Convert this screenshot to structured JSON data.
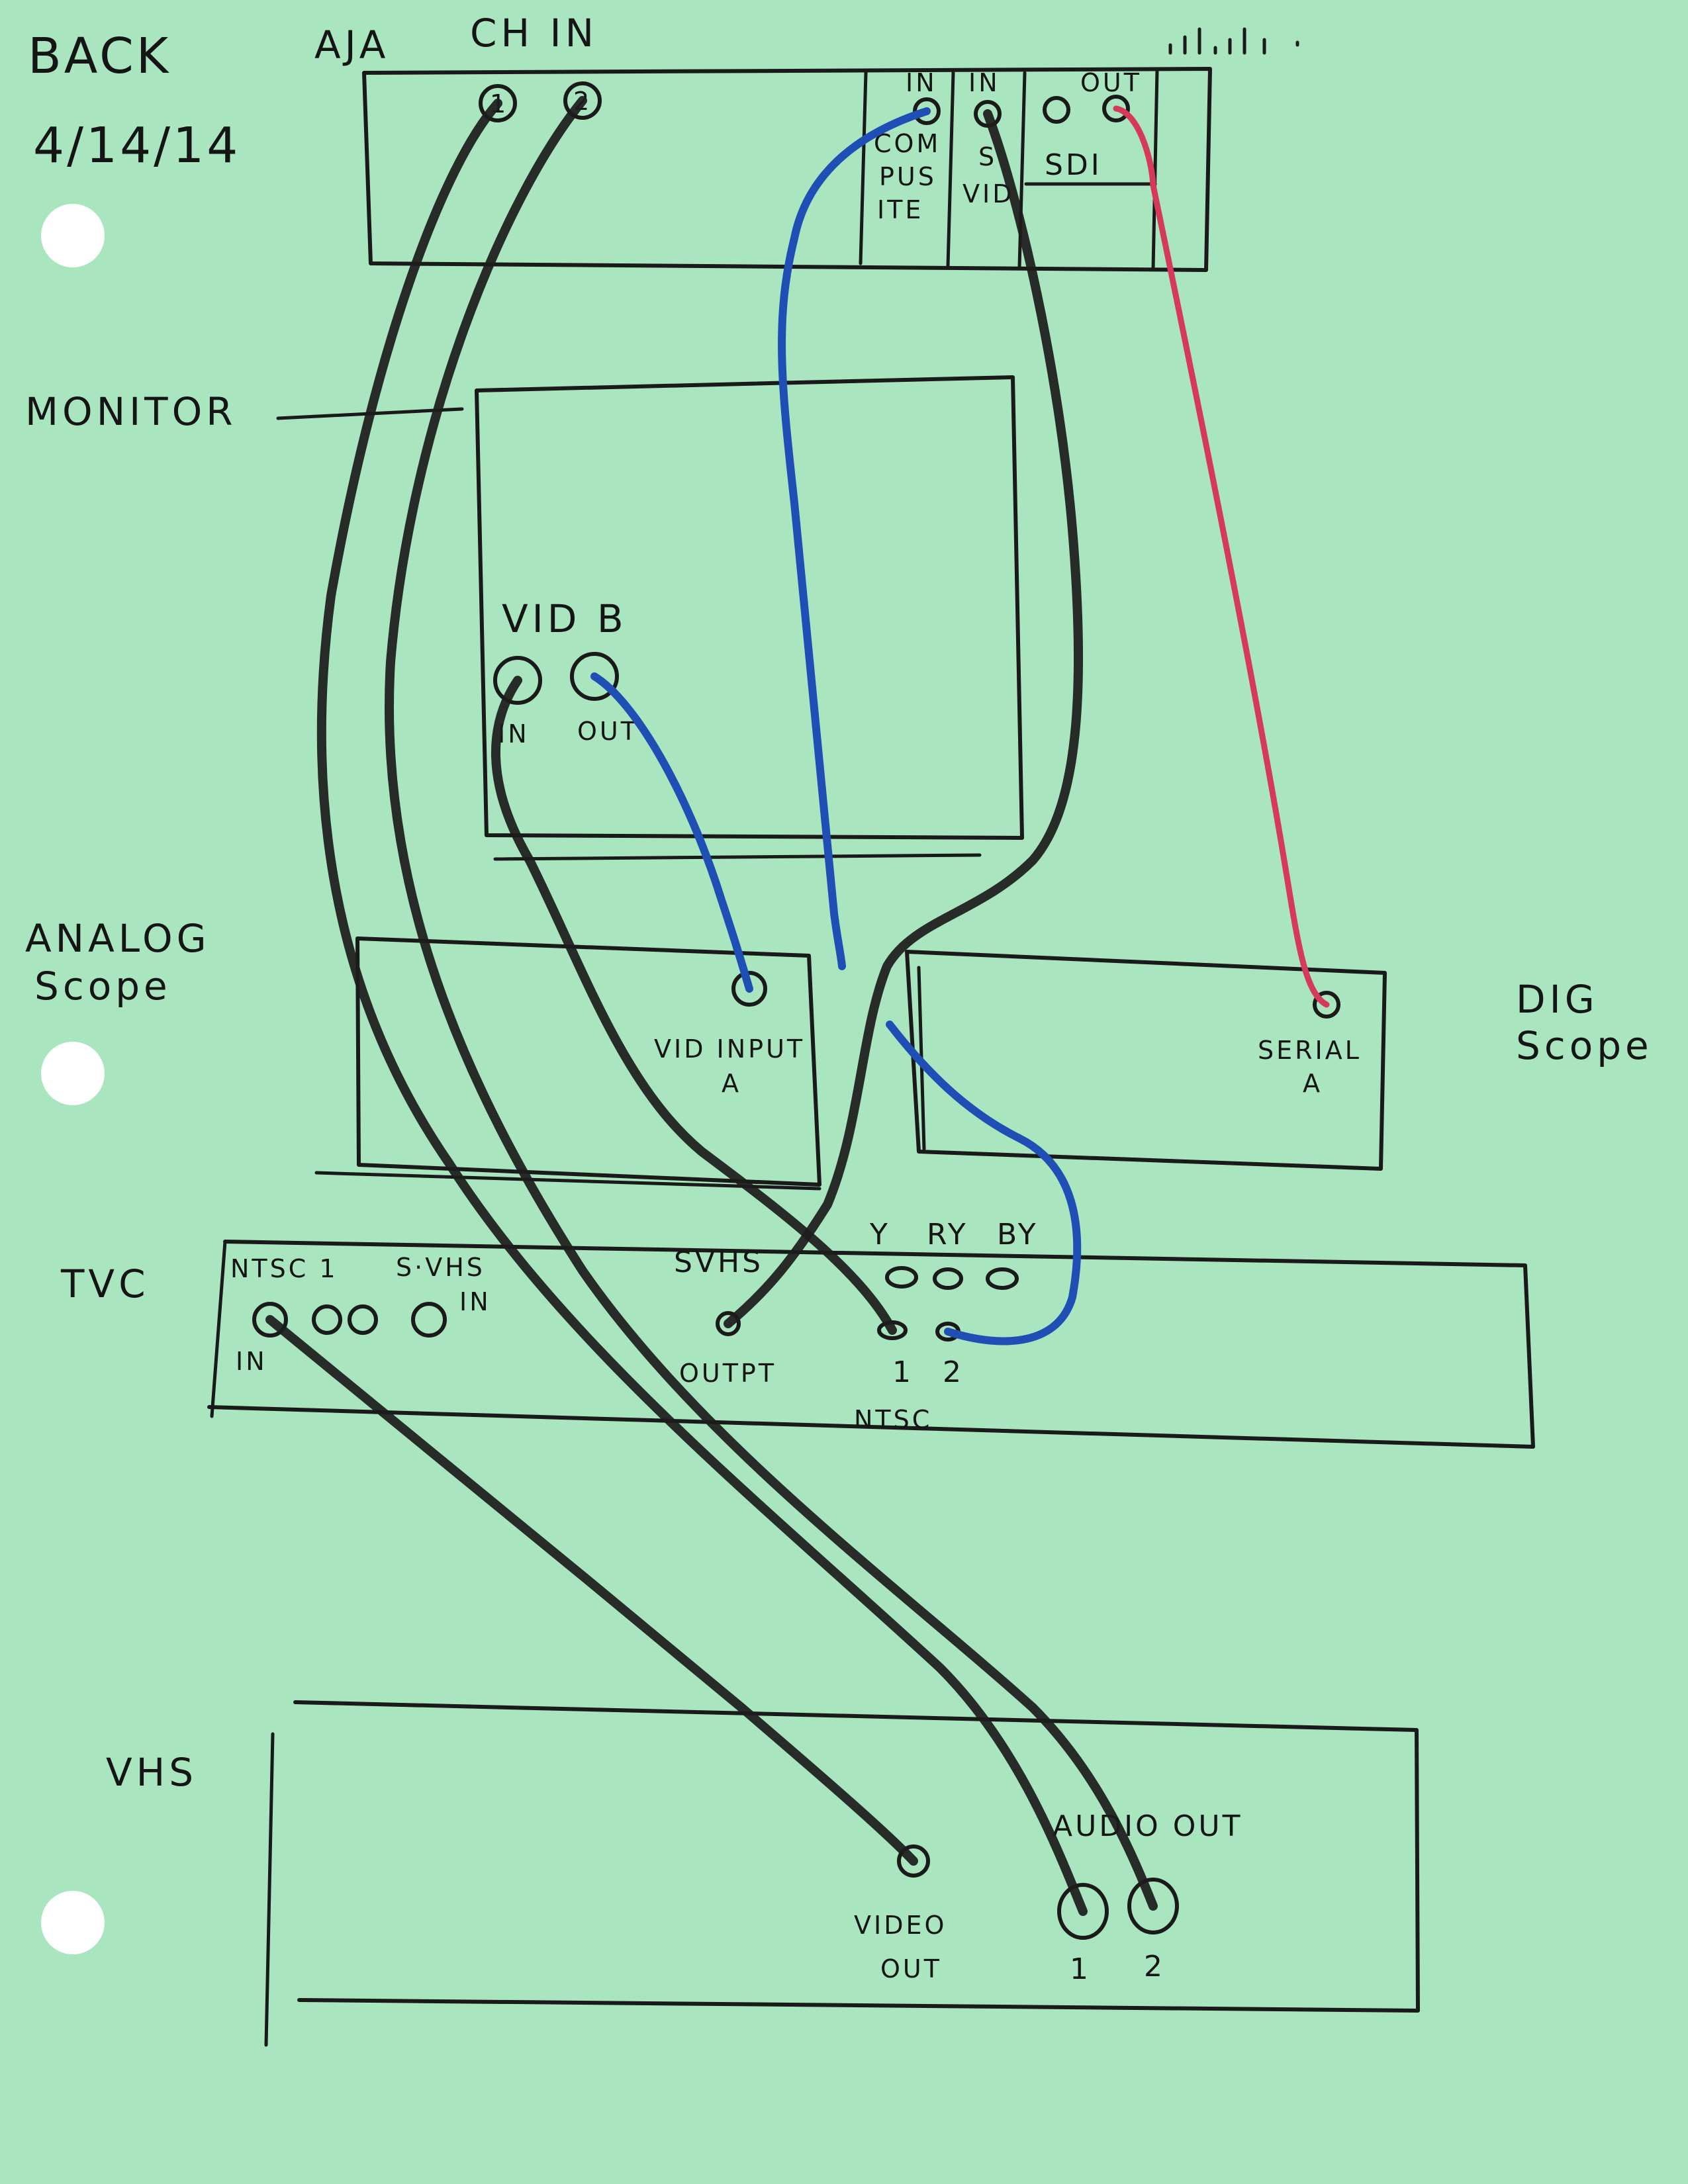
{
  "header": {
    "title": "BACK",
    "date": "4/14/14"
  },
  "aja": {
    "label": "AJA",
    "ch_in": "CH  IN",
    "port_1": "1",
    "port_2": "2",
    "composite_in": "IN",
    "composite_label_1": "COM",
    "composite_label_2": "PUS",
    "composite_label_3": "ITE",
    "svid_in": "IN",
    "svid_label_1": "S",
    "svid_label_2": "VID",
    "sdi_out": "OUT",
    "sdi_label": "SDI"
  },
  "monitor": {
    "label": "MONITOR",
    "vid_b": "VID B",
    "in": "IN",
    "out": "OUT"
  },
  "analog_scope": {
    "label_1": "ANALOG",
    "label_2": "Scope",
    "vid_input": "VID INPUT",
    "input_a": "A"
  },
  "dig_scope": {
    "label_1": "DIG",
    "label_2": "Scope",
    "serial": "SERIAL",
    "serial_a": "A"
  },
  "tvc": {
    "label": "TVC",
    "ntsc1": "NTSC 1",
    "in": "IN",
    "svhs_in": "S·VHS",
    "svhs_in_2": "IN",
    "svhs": "SVHS",
    "output": "OUTPT",
    "y": "Y",
    "ry": "RY",
    "by": "BY",
    "ntsc_1": "1",
    "ntsc_2": "2",
    "ntsc": "NTSC"
  },
  "vhs": {
    "label": "VHS",
    "video_out_1": "VIDEO",
    "video_out_2": "OUT",
    "audio_out": "AUDIO  OUT",
    "audio_1": "1",
    "audio_2": "2"
  },
  "colors": {
    "paper": "#a9e6bf",
    "ink": "#1a1a1a",
    "blue_cable": "#1f4fb5",
    "red_cable": "#d63a5a",
    "black_cable": "#1d1d1d"
  }
}
